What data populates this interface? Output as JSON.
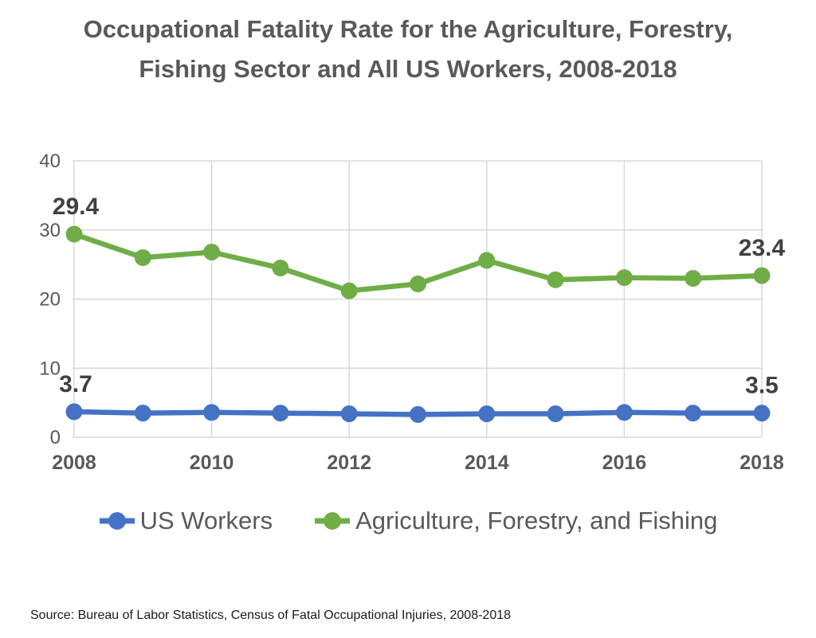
{
  "title": "Occupational Fatality Rate for the Agriculture, Forestry,\nFishing Sector and All US Workers, 2008-2018",
  "source": "Source: Bureau of Labor Statistics, Census of Fatal Occupational Injuries, 2008-2018",
  "colors": {
    "us_workers": "#4472C4",
    "agriculture": "#70AD47",
    "gridline": "#D9D9D9",
    "axis_text": "#595959",
    "data_label": "#404040"
  },
  "legend": {
    "items": [
      {
        "label": "US Workers",
        "color": "#4472C4"
      },
      {
        "label": "Agriculture, Forestry, and Fishing",
        "color": "#70AD47"
      }
    ]
  },
  "chart_data": {
    "type": "line",
    "x": [
      2008,
      2009,
      2010,
      2011,
      2012,
      2013,
      2014,
      2015,
      2016,
      2017,
      2018
    ],
    "series": [
      {
        "name": "US Workers",
        "color": "#4472C4",
        "values": [
          3.7,
          3.5,
          3.6,
          3.5,
          3.4,
          3.3,
          3.4,
          3.4,
          3.6,
          3.5,
          3.5
        ]
      },
      {
        "name": "Agriculture, Forestry, and Fishing",
        "color": "#70AD47",
        "values": [
          29.4,
          26.0,
          26.8,
          24.5,
          21.2,
          22.2,
          25.6,
          22.8,
          23.1,
          23.0,
          23.4
        ]
      }
    ],
    "title": "Occupational Fatality Rate for the Agriculture, Forestry, Fishing Sector and All US Workers, 2008-2018",
    "xlabel": "",
    "ylabel": "",
    "xticks": [
      2008,
      2010,
      2012,
      2014,
      2016,
      2018
    ],
    "yticks": [
      0,
      10,
      20,
      30,
      40
    ],
    "ylim": [
      0,
      40
    ],
    "grid": true,
    "legend_position": "bottom",
    "annotations": [
      {
        "series": "Agriculture, Forestry, and Fishing",
        "x": 2008,
        "text": "29.4"
      },
      {
        "series": "Agriculture, Forestry, and Fishing",
        "x": 2018,
        "text": "23.4"
      },
      {
        "series": "US Workers",
        "x": 2008,
        "text": "3.7"
      },
      {
        "series": "US Workers",
        "x": 2018,
        "text": "3.5"
      }
    ]
  }
}
